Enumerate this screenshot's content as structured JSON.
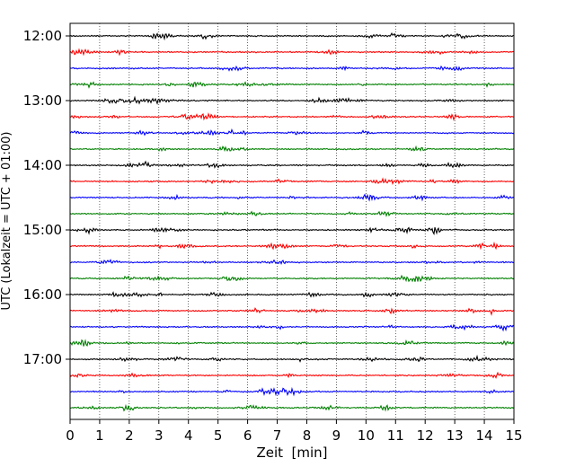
{
  "chart_data": {
    "type": "line",
    "title": "",
    "xlabel": "Zeit  [min]",
    "ylabel": "UTC (Lokalzeit = UTC + 01:00)",
    "xlim": [
      0,
      15
    ],
    "x_ticks": [
      "0",
      "1",
      "2",
      "3",
      "4",
      "5",
      "6",
      "7",
      "8",
      "9",
      "10",
      "11",
      "12",
      "13",
      "14",
      "15"
    ],
    "y_tick_labels": [
      "12:00",
      "13:00",
      "14:00",
      "15:00",
      "16:00",
      "17:00"
    ],
    "trace_start_times": [
      "12:00",
      "12:15",
      "12:30",
      "12:45",
      "13:00",
      "13:15",
      "13:30",
      "13:45",
      "14:00",
      "14:15",
      "14:30",
      "14:45",
      "15:00",
      "15:15",
      "15:30",
      "15:45",
      "16:00",
      "16:15",
      "16:30",
      "16:45",
      "17:00",
      "17:15",
      "17:30",
      "17:45"
    ],
    "trace_minutes_each": 15,
    "trace_colors": [
      "#000000",
      "#ff0000",
      "#0000ff",
      "#008000"
    ],
    "vertical_grid": "dotted",
    "legend": "none"
  }
}
